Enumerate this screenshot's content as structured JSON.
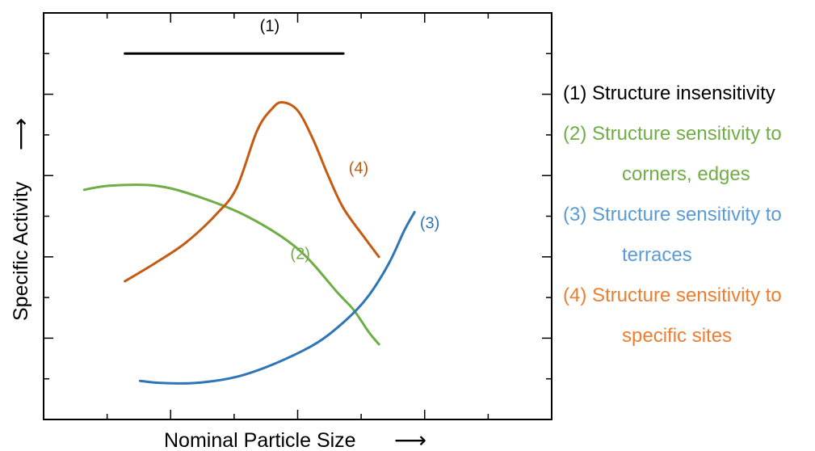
{
  "chart_data": {
    "type": "line",
    "xlabel": "Nominal Particle Size",
    "ylabel": "Specific Activity",
    "axis_arrow": "⟶",
    "x_ticks_major": 4,
    "y_ticks_major": 5,
    "series": [
      {
        "name": "(1)",
        "label": "(1)",
        "color": "#000000",
        "points": [
          [
            0.16,
            0.9
          ],
          [
            0.59,
            0.9
          ]
        ]
      },
      {
        "name": "(2)",
        "label": "(2)",
        "color": "#70ad47",
        "points": [
          [
            0.08,
            0.565
          ],
          [
            0.13,
            0.575
          ],
          [
            0.22,
            0.575
          ],
          [
            0.3,
            0.55
          ],
          [
            0.4,
            0.5
          ],
          [
            0.5,
            0.42
          ],
          [
            0.58,
            0.31
          ],
          [
            0.61,
            0.27
          ],
          [
            0.64,
            0.215
          ],
          [
            0.66,
            0.185
          ]
        ]
      },
      {
        "name": "(3)",
        "label": "(3)",
        "color": "#2e75b6",
        "points": [
          [
            0.19,
            0.095
          ],
          [
            0.23,
            0.09
          ],
          [
            0.3,
            0.09
          ],
          [
            0.38,
            0.105
          ],
          [
            0.46,
            0.14
          ],
          [
            0.54,
            0.19
          ],
          [
            0.6,
            0.25
          ],
          [
            0.64,
            0.305
          ],
          [
            0.68,
            0.385
          ],
          [
            0.71,
            0.465
          ],
          [
            0.73,
            0.51
          ]
        ]
      },
      {
        "name": "(4)",
        "label": "(4)",
        "color": "#c55a11",
        "points": [
          [
            0.16,
            0.34
          ],
          [
            0.22,
            0.385
          ],
          [
            0.28,
            0.435
          ],
          [
            0.34,
            0.505
          ],
          [
            0.38,
            0.57
          ],
          [
            0.42,
            0.71
          ],
          [
            0.45,
            0.765
          ],
          [
            0.47,
            0.78
          ],
          [
            0.5,
            0.76
          ],
          [
            0.53,
            0.69
          ],
          [
            0.56,
            0.6
          ],
          [
            0.59,
            0.52
          ],
          [
            0.63,
            0.45
          ],
          [
            0.66,
            0.4
          ]
        ]
      }
    ]
  },
  "legend": [
    {
      "lines": [
        "(1) Structure insensitivity"
      ],
      "color": "#000000"
    },
    {
      "lines": [
        "(2) Structure sensitivity to",
        "corners, edges"
      ],
      "color": "#70ad47"
    },
    {
      "lines": [
        "(3) Structure sensitivity to",
        "terraces"
      ],
      "color": "#5b9bd5"
    },
    {
      "lines": [
        "(4) Structure sensitivity to",
        "specific sites"
      ],
      "color": "#ed7d31"
    }
  ]
}
